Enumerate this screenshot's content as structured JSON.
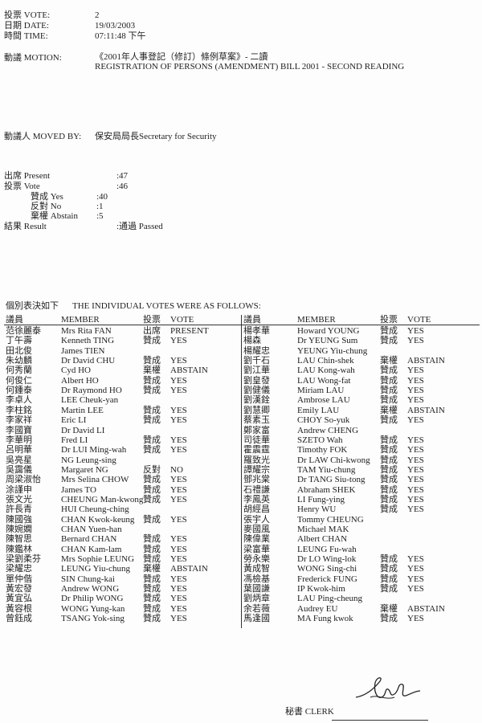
{
  "header": {
    "vote_label": "投票 VOTE:",
    "vote_value": "2",
    "date_label": "日期 DATE:",
    "date_value": "19/03/2003",
    "time_label": "時間 TIME:",
    "time_value": "07:11:48 下午",
    "motion_label": "動議 MOTION:",
    "motion_zh": "《2001年人事登記（修訂）條例草案》- 二讀",
    "motion_en": "REGISTRATION OF PERSONS (AMENDMENT) BILL 2001 - SECOND READING",
    "moved_by_label": "動議人 MOVED BY:",
    "moved_by_value": "保安局局長Secretary for Security"
  },
  "summary": {
    "present_label": "出席 Present",
    "present_value": ":47",
    "vote_label": "投票 Vote",
    "vote_value": ":46",
    "yes_label": "贊成 Yes",
    "yes_value": ":40",
    "no_label": "反對 No",
    "no_value": ":1",
    "abstain_label": "棄權 Abstain",
    "abstain_value": ":5",
    "result_label": "結果 Result",
    "result_value": ":通過 Passed"
  },
  "votes_heading": {
    "zh": "個別表決如下",
    "en": "THE INDIVIDUAL VOTES WERE AS FOLLOWS:"
  },
  "columns": {
    "member_zh": "議員",
    "member_en": "MEMBER",
    "vote_zh": "投票",
    "vote_en": "VOTE"
  },
  "left_votes": [
    [
      "范徐麗泰",
      "Mrs Rita FAN",
      "出席",
      "PRESENT"
    ],
    [
      "丁午壽",
      "Kenneth TING",
      "贊成",
      "YES"
    ],
    [
      "田北俊",
      "James TIEN",
      "",
      ""
    ],
    [
      "朱幼麟",
      "Dr David CHU",
      "贊成",
      "YES"
    ],
    [
      "何秀蘭",
      "Cyd HO",
      "棄權",
      "ABSTAIN"
    ],
    [
      "何俊仁",
      "Albert HO",
      "贊成",
      "YES"
    ],
    [
      "何鍾泰",
      "Dr Raymond HO",
      "贊成",
      "YES"
    ],
    [
      "李卓人",
      "LEE Cheuk-yan",
      "",
      ""
    ],
    [
      "李柱銘",
      "Martin LEE",
      "贊成",
      "YES"
    ],
    [
      "李家祥",
      "Eric LI",
      "贊成",
      "YES"
    ],
    [
      "李國寶",
      "Dr David LI",
      "",
      ""
    ],
    [
      "李華明",
      "Fred LI",
      "贊成",
      "YES"
    ],
    [
      "呂明華",
      "Dr LUI Ming-wah",
      "贊成",
      "YES"
    ],
    [
      "吳亮星",
      "NG Leung-sing",
      "",
      ""
    ],
    [
      "吳靄儀",
      "Margaret NG",
      "反對",
      "NO"
    ],
    [
      "周梁淑怡",
      "Mrs Selina CHOW",
      "贊成",
      "YES"
    ],
    [
      "涂謹申",
      "James TO",
      "贊成",
      "YES"
    ],
    [
      "張文光",
      "CHEUNG Man-kwong",
      "贊成",
      "YES"
    ],
    [
      "許長青",
      "HUI Cheung-ching",
      "",
      ""
    ],
    [
      "陳國強",
      "CHAN Kwok-keung",
      "贊成",
      "YES"
    ],
    [
      "陳婉嫻",
      "CHAN Yuen-han",
      "",
      ""
    ],
    [
      "陳智思",
      "Bernard CHAN",
      "贊成",
      "YES"
    ],
    [
      "陳鑑林",
      "CHAN Kam-lam",
      "贊成",
      "YES"
    ],
    [
      "梁劉柔芬",
      "Mrs Sophie LEUNG",
      "贊成",
      "YES"
    ],
    [
      "梁耀忠",
      "LEUNG Yiu-chung",
      "棄權",
      "ABSTAIN"
    ],
    [
      "單仲偕",
      "SIN Chung-kai",
      "贊成",
      "YES"
    ],
    [
      "黃宏發",
      "Andrew WONG",
      "贊成",
      "YES"
    ],
    [
      "黃宜弘",
      "Dr Philip WONG",
      "贊成",
      "YES"
    ],
    [
      "黃容根",
      "WONG Yung-kan",
      "贊成",
      "YES"
    ],
    [
      "曾鈺成",
      "TSANG Yok-sing",
      "贊成",
      "YES"
    ]
  ],
  "right_votes": [
    [
      "楊孝華",
      "Howard YOUNG",
      "贊成",
      "YES"
    ],
    [
      "楊森",
      "Dr YEUNG Sum",
      "贊成",
      "YES"
    ],
    [
      "楊耀忠",
      "YEUNG Yiu-chung",
      "",
      ""
    ],
    [
      "劉千石",
      "LAU Chin-shek",
      "棄權",
      "ABSTAIN"
    ],
    [
      "劉江華",
      "LAU Kong-wah",
      "贊成",
      "YES"
    ],
    [
      "劉皇發",
      "LAU Wong-fat",
      "贊成",
      "YES"
    ],
    [
      "劉健儀",
      "Miriam LAU",
      "贊成",
      "YES"
    ],
    [
      "劉漢銓",
      "Ambrose LAU",
      "贊成",
      "YES"
    ],
    [
      "劉慧卿",
      "Emily LAU",
      "棄權",
      "ABSTAIN"
    ],
    [
      "蔡素玉",
      "CHOY So-yuk",
      "贊成",
      "YES"
    ],
    [
      "鄭家富",
      "Andrew CHENG",
      "",
      ""
    ],
    [
      "司徒華",
      "SZETO Wah",
      "贊成",
      "YES"
    ],
    [
      "霍震霆",
      "Timothy FOK",
      "贊成",
      "YES"
    ],
    [
      "羅致光",
      "Dr LAW Chi-kwong",
      "贊成",
      "YES"
    ],
    [
      "譚耀宗",
      "TAM Yiu-chung",
      "贊成",
      "YES"
    ],
    [
      "鄧兆棠",
      "Dr TANG Siu-tong",
      "贊成",
      "YES"
    ],
    [
      "石禮謙",
      "Abraham SHEK",
      "贊成",
      "YES"
    ],
    [
      "李鳳英",
      "LI Fung-ying",
      "贊成",
      "YES"
    ],
    [
      "胡經昌",
      "Henry WU",
      "贊成",
      "YES"
    ],
    [
      "張宇人",
      "Tommy CHEUNG",
      "",
      ""
    ],
    [
      "麥國風",
      "Michael MAK",
      "",
      ""
    ],
    [
      "陳偉業",
      "Albert CHAN",
      "",
      ""
    ],
    [
      "梁富華",
      "LEUNG Fu-wah",
      "",
      ""
    ],
    [
      "勞永樂",
      "Dr LO Wing-lok",
      "贊成",
      "YES"
    ],
    [
      "黃成智",
      "WONG Sing-chi",
      "贊成",
      "YES"
    ],
    [
      "馮檢基",
      "Frederick FUNG",
      "贊成",
      "YES"
    ],
    [
      "葉國謙",
      "IP Kwok-him",
      "贊成",
      "YES"
    ],
    [
      "劉炳章",
      "LAU Ping-cheung",
      "",
      ""
    ],
    [
      "余若薇",
      "Audrey EU",
      "棄權",
      "ABSTAIN"
    ],
    [
      "馬逢國",
      "MA Fung kwok",
      "贊成",
      "YES"
    ]
  ],
  "footer": {
    "clerk_label": "秘書 CLERK",
    "signature_icon": "handwritten-signature"
  }
}
